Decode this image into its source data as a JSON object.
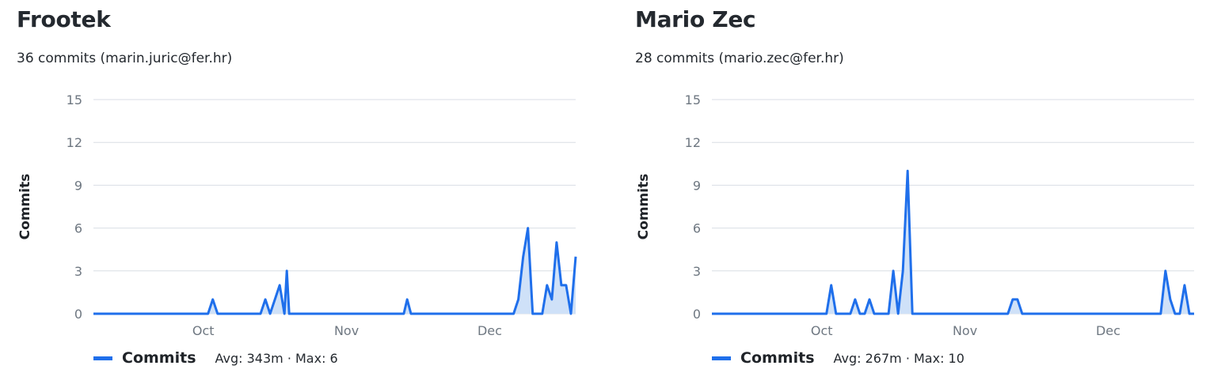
{
  "contributors": [
    {
      "name": "Frootek",
      "summary": "36 commits (marin.juric@fer.hr)",
      "legend_label": "Commits",
      "stats": "Avg: 343m · Max: 6"
    },
    {
      "name": "Mario Zec",
      "summary": "28 commits (mario.zec@fer.hr)",
      "legend_label": "Commits",
      "stats": "Avg: 267m · Max: 10"
    }
  ],
  "colors": {
    "line": "#1f6feb",
    "fill": "#cfe1f8",
    "grid": "#d8dee4"
  },
  "chart_data": [
    {
      "type": "area",
      "ylabel": "Commits",
      "ylim": [
        0,
        15
      ],
      "yticks": [
        0,
        3,
        6,
        9,
        12,
        15
      ],
      "xlim": [
        0,
        101
      ],
      "xticks": [
        {
          "label": "Oct",
          "x": 23
        },
        {
          "label": "Nov",
          "x": 53
        },
        {
          "label": "Dec",
          "x": 83
        }
      ],
      "grid": true,
      "legend": "bottom-left",
      "series": [
        {
          "name": "Commits",
          "points": [
            [
              0,
              0
            ],
            [
              24,
              0
            ],
            [
              25,
              1
            ],
            [
              26,
              0
            ],
            [
              35,
              0
            ],
            [
              36,
              1
            ],
            [
              37,
              0
            ],
            [
              39,
              2
            ],
            [
              40,
              0
            ],
            [
              40.5,
              3
            ],
            [
              41,
              0
            ],
            [
              65,
              0
            ],
            [
              65.7,
              1
            ],
            [
              66.5,
              0
            ],
            [
              88,
              0
            ],
            [
              89,
              1
            ],
            [
              90,
              4
            ],
            [
              91,
              6
            ],
            [
              92,
              0
            ],
            [
              94,
              0
            ],
            [
              95,
              2
            ],
            [
              96,
              1
            ],
            [
              97,
              5
            ],
            [
              98,
              2
            ],
            [
              99,
              2
            ],
            [
              100,
              0
            ],
            [
              101,
              4
            ]
          ]
        }
      ]
    },
    {
      "type": "area",
      "ylabel": "Commits",
      "ylim": [
        0,
        15
      ],
      "yticks": [
        0,
        3,
        6,
        9,
        12,
        15
      ],
      "xlim": [
        0,
        101
      ],
      "xticks": [
        {
          "label": "Oct",
          "x": 23
        },
        {
          "label": "Nov",
          "x": 53
        },
        {
          "label": "Dec",
          "x": 83
        }
      ],
      "grid": true,
      "legend": "bottom-left",
      "series": [
        {
          "name": "Commits",
          "points": [
            [
              0,
              0
            ],
            [
              24,
              0
            ],
            [
              25,
              2
            ],
            [
              26,
              0
            ],
            [
              29,
              0
            ],
            [
              30,
              1
            ],
            [
              31,
              0
            ],
            [
              32,
              0
            ],
            [
              33,
              1
            ],
            [
              34,
              0
            ],
            [
              37,
              0
            ],
            [
              38,
              3
            ],
            [
              39,
              0
            ],
            [
              40,
              3
            ],
            [
              41,
              10
            ],
            [
              42,
              0
            ],
            [
              62,
              0
            ],
            [
              63,
              1
            ],
            [
              64,
              1
            ],
            [
              65,
              0
            ],
            [
              94,
              0
            ],
            [
              95,
              3
            ],
            [
              96,
              1
            ],
            [
              97,
              0
            ],
            [
              98,
              0
            ],
            [
              99,
              2
            ],
            [
              100,
              0
            ],
            [
              101,
              0
            ]
          ]
        }
      ]
    }
  ]
}
